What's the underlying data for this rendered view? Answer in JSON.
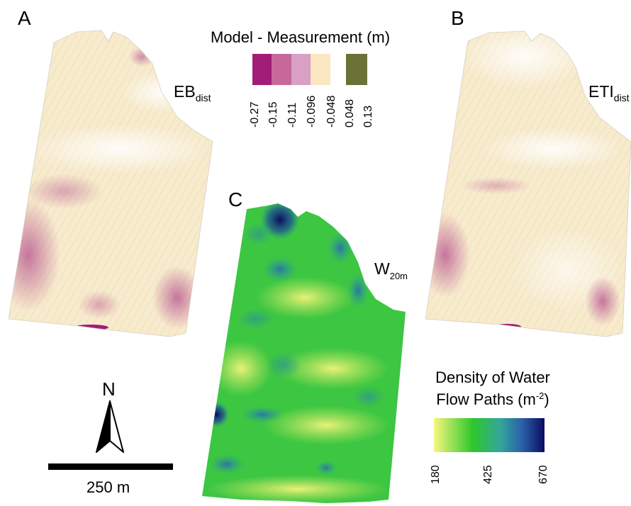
{
  "panels": {
    "a": {
      "letter": "A",
      "label_main": "EB",
      "label_sub": "dist"
    },
    "b": {
      "letter": "B",
      "label_main": "ETI",
      "label_sub": "dist"
    },
    "c": {
      "letter": "C",
      "label_main": "W",
      "label_sub": "20m"
    }
  },
  "difference_legend": {
    "title": "Model - Measurement (m)",
    "swatches": [
      {
        "color": "#a11d76"
      },
      {
        "color": "#c6699a"
      },
      {
        "color": "#d8a0c4"
      },
      {
        "color": "#fae6c0"
      },
      {
        "color": "#ffffff"
      },
      {
        "color": "#6b7235"
      }
    ],
    "ticks": [
      "-0.27",
      "-0.15",
      "-0.11",
      "-0.096",
      "-0.048",
      "0.048",
      "0.13"
    ]
  },
  "density_legend": {
    "title_line1": "Density of Water",
    "title_line2": "Flow Paths (m",
    "title_sup": "-2",
    "title_end": ")",
    "ticks": [
      "180",
      "425",
      "670"
    ],
    "colors": [
      "#f7f77e",
      "#2ec72c",
      "#33a69a",
      "#1a3b8e",
      "#0c0c5e"
    ]
  },
  "north_arrow": {
    "label": "N"
  },
  "scale_bar": {
    "label": "250 m",
    "distance_m": 250
  }
}
